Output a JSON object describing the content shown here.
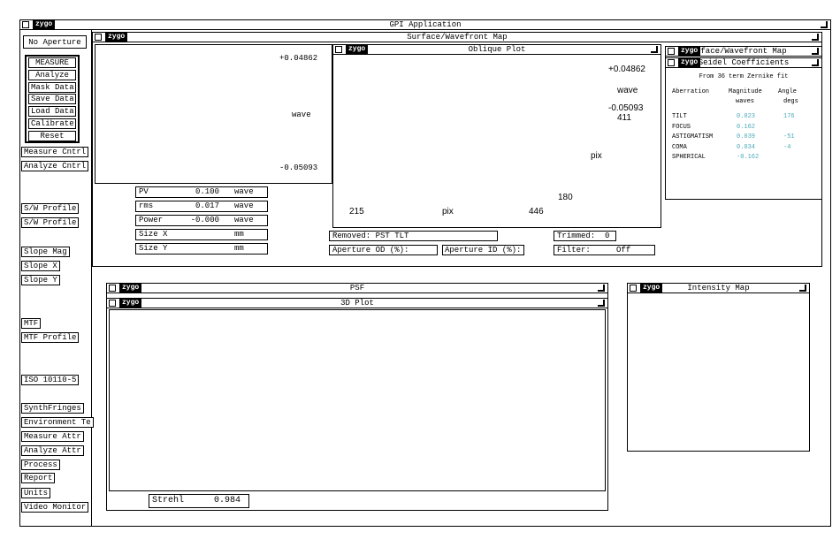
{
  "app": {
    "logo": "zygo",
    "title": "GPI Application"
  },
  "sidebar": {
    "aperture": "No Aperture",
    "buttons": [
      "MEASURE",
      "Analyze",
      "Mask Data",
      "Save Data",
      "Load Data",
      "Calibrate",
      "Reset"
    ],
    "controls": [
      "Measure Cntrl",
      "Analyze Cntrl",
      "S/W Profile",
      "S/W Profile",
      "Slope Mag",
      "Slope X",
      "Slope Y",
      "MTF",
      "MTF Profile",
      "ISO 10110-5",
      "SynthFringes",
      "Environment Te",
      "Measure Attr",
      "Analyze Attr",
      "Process",
      "Report",
      "Units",
      "Video Monitor"
    ]
  },
  "surface_map": {
    "logo": "zygo",
    "title": "Surface/Wavefront Map",
    "colorbar": {
      "max": "+0.04862",
      "unit": "wave",
      "min": "-0.05093"
    },
    "results": [
      {
        "label": "PV",
        "value": "0.100",
        "unit": "wave"
      },
      {
        "label": "rms",
        "value": "0.017",
        "unit": "wave"
      },
      {
        "label": "Power",
        "value": "-0.000",
        "unit": "wave"
      },
      {
        "label": "Size X",
        "unit": "mm"
      },
      {
        "label": "Size Y",
        "unit": "mm"
      }
    ],
    "status": {
      "removed": "Removed: PST TLT",
      "trimmed_label": "Trimmed:",
      "trimmed_value": "0",
      "aperture_od": "Aperture OD (%):",
      "aperture_id": "Aperture ID (%):",
      "filter_label": "Filter:",
      "filter_value": "Off"
    }
  },
  "oblique_plot": {
    "logo": "zygo",
    "title": "Oblique Plot",
    "colorbar": {
      "max": "+0.04862",
      "unit": "wave",
      "min": "-0.05093"
    },
    "axis_labels": {
      "y_end": "411",
      "y_label": "pix",
      "y_start": "180",
      "x_start": "215",
      "x_label": "pix",
      "x_end": "446"
    }
  },
  "seidel": {
    "parent_logo": "zygo",
    "parent_title": "face/Wavefront Map",
    "logo": "zygo",
    "title": "Seidel Coefficients",
    "note": "From 36 term Zernike fit",
    "headers": [
      "Aberration",
      "Magnitude",
      "Angle"
    ],
    "units": [
      "waves",
      "degs"
    ],
    "rows": [
      [
        "TILT",
        "0.023",
        "176"
      ],
      [
        "FOCUS",
        "0.162"
      ],
      [
        "ASTIGMATISM",
        "0.039",
        "-51"
      ],
      [
        "COMA",
        "0.034",
        "-4"
      ],
      [
        "SPHERICAL",
        "-0.162"
      ]
    ]
  },
  "psf": {
    "logo": "zygo",
    "title": "PSF",
    "plot": {
      "logo": "zygo",
      "title": "3D Plot"
    },
    "strehl": {
      "label": "Strehl",
      "value": "0.984"
    }
  },
  "intensity_map": {
    "logo": "zygo",
    "title": "Intensity Map"
  }
}
